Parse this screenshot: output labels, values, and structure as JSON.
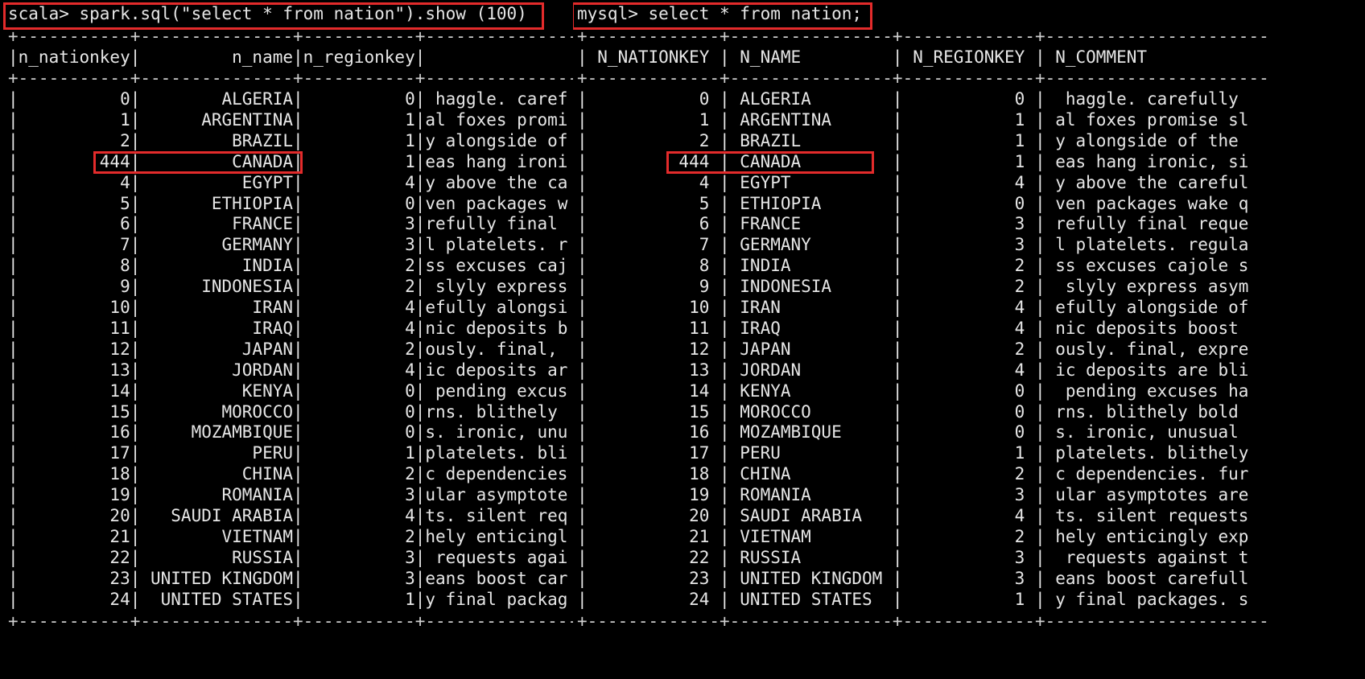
{
  "spark": {
    "prompt": "scala> spark.sql(\"select * from nation\").show (100)",
    "border": "+-----------+---------------+-----------+--------------------",
    "header": "|n_nationkey|         n_name|n_regionkey|                 n_c",
    "rows": [
      "|          0|        ALGERIA|          0| haggle. caref",
      "|          1|      ARGENTINA|          1|al foxes promi",
      "|          2|         BRAZIL|          1|y alongside of",
      "|        444|         CANADA|          1|eas hang ironi",
      "|          4|          EGYPT|          4|y above the ca",
      "|          5|       ETHIOPIA|          0|ven packages w",
      "|          6|         FRANCE|          3|refully final ",
      "|          7|        GERMANY|          3|l platelets. r",
      "|          8|          INDIA|          2|ss excuses caj",
      "|          9|      INDONESIA|          2| slyly express",
      "|         10|           IRAN|          4|efully alongsi",
      "|         11|           IRAQ|          4|nic deposits b",
      "|         12|          JAPAN|          2|ously. final, ",
      "|         13|         JORDAN|          4|ic deposits ar",
      "|         14|          KENYA|          0| pending excus",
      "|         15|        MOROCCO|          0|rns. blithely ",
      "|         16|     MOZAMBIQUE|          0|s. ironic, unu",
      "|         17|           PERU|          1|platelets. bli",
      "|         18|          CHINA|          2|c dependencies",
      "|         19|        ROMANIA|          3|ular asymptote",
      "|         20|   SAUDI ARABIA|          4|ts. silent req",
      "|         21|        VIETNAM|          2|hely enticingl",
      "|         22|         RUSSIA|          3| requests agai",
      "|         23| UNITED KINGDOM|          3|eans boost car",
      "|         24|  UNITED STATES|          1|y final packag"
    ]
  },
  "mysql": {
    "prompt": "mysql> select * from nation;",
    "border": "+-------------+----------------+-------------+----------------------",
    "header": "| N_NATIONKEY | N_NAME         | N_REGIONKEY | N_COMMENT",
    "rows": [
      "|           0 | ALGERIA        |           0 |  haggle. carefully",
      "|           1 | ARGENTINA      |           1 | al foxes promise sl",
      "|           2 | BRAZIL         |           1 | y alongside of the",
      "|         444 | CANADA         |           1 | eas hang ironic, si",
      "|           4 | EGYPT          |           4 | y above the careful",
      "|           5 | ETHIOPIA       |           0 | ven packages wake q",
      "|           6 | FRANCE         |           3 | refully final reque",
      "|           7 | GERMANY        |           3 | l platelets. regula",
      "|           8 | INDIA          |           2 | ss excuses cajole s",
      "|           9 | INDONESIA      |           2 |  slyly express asym",
      "|          10 | IRAN           |           4 | efully alongside of",
      "|          11 | IRAQ           |           4 | nic deposits boost ",
      "|          12 | JAPAN          |           2 | ously. final, expre",
      "|          13 | JORDAN         |           4 | ic deposits are bli",
      "|          14 | KENYA          |           0 |  pending excuses ha",
      "|          15 | MOROCCO        |           0 | rns. blithely bold ",
      "|          16 | MOZAMBIQUE     |           0 | s. ironic, unusual ",
      "|          17 | PERU           |           1 | platelets. blithely",
      "|          18 | CHINA          |           2 | c dependencies. fur",
      "|          19 | ROMANIA        |           3 | ular asymptotes are",
      "|          20 | SAUDI ARABIA   |           4 | ts. silent requests",
      "|          21 | VIETNAM        |           2 | hely enticingly exp",
      "|          22 | RUSSIA         |           3 |  requests against t",
      "|          23 | UNITED KINGDOM |           3 | eans boost carefull",
      "|          24 | UNITED STATES  |           1 | y final packages. s"
    ]
  },
  "colors": {
    "background": "#000000",
    "text": "#e6e6e6",
    "highlight": "#e32b2b"
  }
}
